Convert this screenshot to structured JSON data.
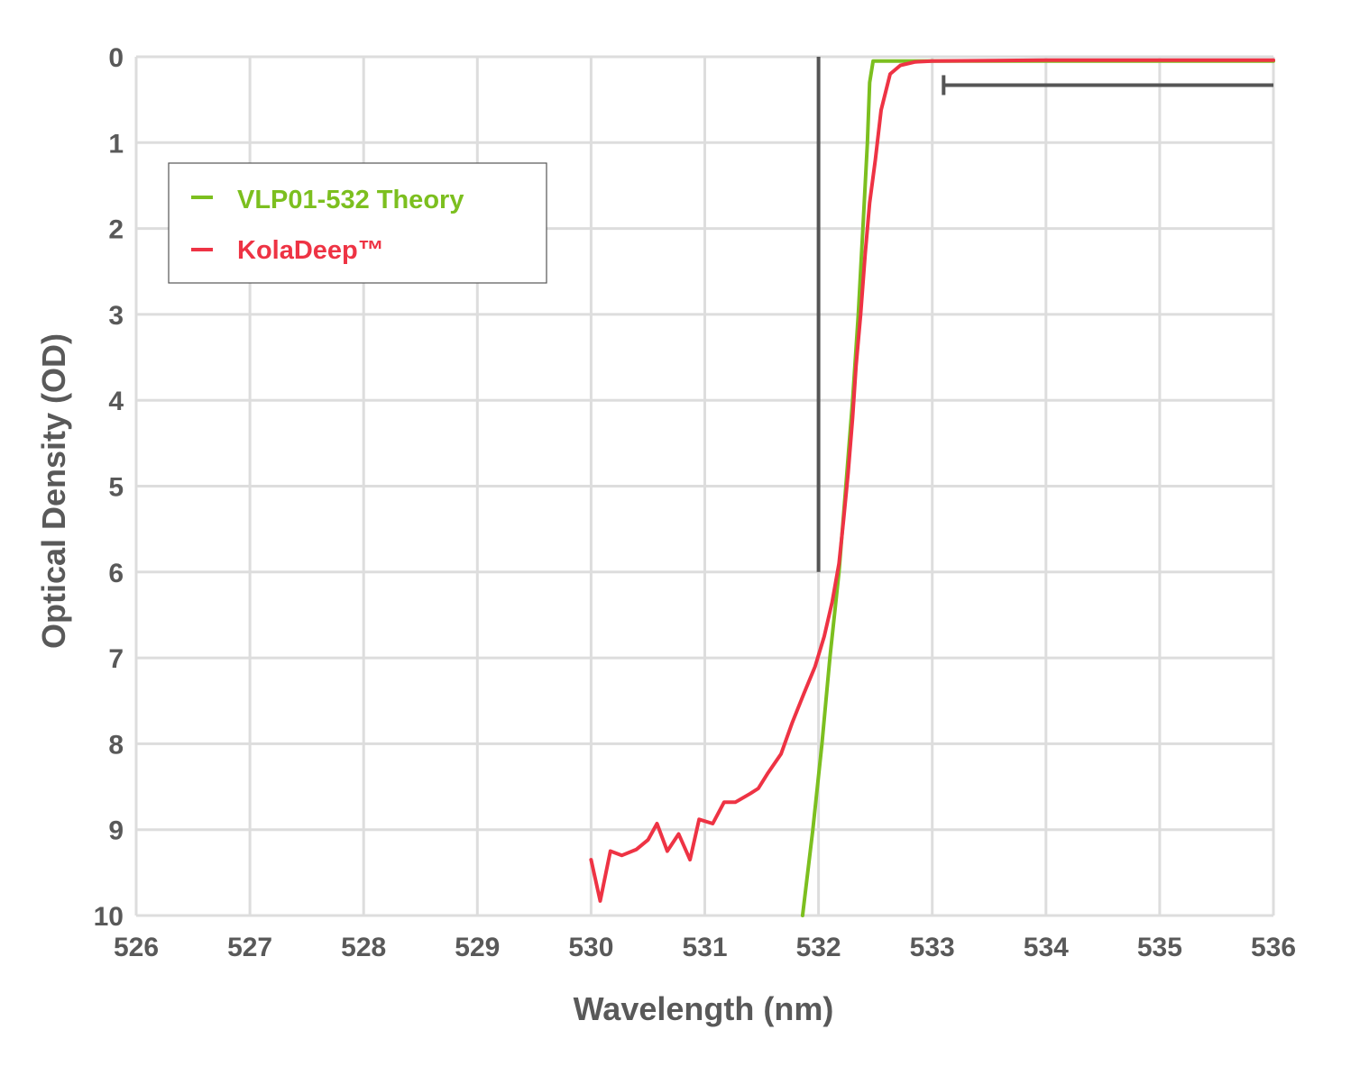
{
  "chart_data": {
    "type": "line",
    "title": "",
    "xlabel": "Wavelength (nm)",
    "ylabel": "Optical Density (OD)",
    "xlim": [
      526,
      536
    ],
    "ylim": [
      0,
      10
    ],
    "y_inverted": true,
    "grid": true,
    "legend_position": "top-left",
    "x_ticks": [
      "526",
      "527",
      "528",
      "529",
      "530",
      "531",
      "532",
      "533",
      "534",
      "535",
      "536"
    ],
    "y_ticks": [
      "0",
      "1",
      "2",
      "3",
      "4",
      "5",
      "6",
      "7",
      "8",
      "9",
      "10"
    ],
    "series": [
      {
        "name": "VLP01-532 Theory",
        "color": "#7cbf1f",
        "points": [
          [
            531.86,
            10.0
          ],
          [
            531.95,
            9.0
          ],
          [
            532.03,
            8.0
          ],
          [
            532.1,
            7.0
          ],
          [
            532.18,
            6.0
          ],
          [
            532.24,
            5.0
          ],
          [
            532.3,
            4.0
          ],
          [
            532.35,
            3.0
          ],
          [
            532.39,
            2.0
          ],
          [
            532.43,
            1.0
          ],
          [
            532.45,
            0.3
          ],
          [
            532.48,
            0.05
          ],
          [
            536.0,
            0.05
          ]
        ]
      },
      {
        "name": "KolaDeep™",
        "color": "#ee3344",
        "points": [
          [
            530.0,
            9.35
          ],
          [
            530.08,
            9.83
          ],
          [
            530.17,
            9.25
          ],
          [
            530.27,
            9.3
          ],
          [
            530.4,
            9.23
          ],
          [
            530.5,
            9.12
          ],
          [
            530.58,
            8.93
          ],
          [
            530.67,
            9.25
          ],
          [
            530.77,
            9.05
          ],
          [
            530.87,
            9.35
          ],
          [
            530.95,
            8.88
          ],
          [
            531.07,
            8.93
          ],
          [
            531.17,
            8.68
          ],
          [
            531.27,
            8.68
          ],
          [
            531.4,
            8.58
          ],
          [
            531.47,
            8.52
          ],
          [
            531.55,
            8.35
          ],
          [
            531.67,
            8.12
          ],
          [
            531.77,
            7.75
          ],
          [
            531.87,
            7.42
          ],
          [
            531.97,
            7.1
          ],
          [
            532.05,
            6.75
          ],
          [
            532.12,
            6.35
          ],
          [
            532.18,
            5.9
          ],
          [
            532.22,
            5.4
          ],
          [
            532.26,
            4.85
          ],
          [
            532.3,
            4.2
          ],
          [
            532.33,
            3.6
          ],
          [
            532.37,
            3.0
          ],
          [
            532.41,
            2.3
          ],
          [
            532.45,
            1.7
          ],
          [
            532.5,
            1.2
          ],
          [
            532.55,
            0.62
          ],
          [
            532.63,
            0.2
          ],
          [
            532.72,
            0.1
          ],
          [
            532.85,
            0.06
          ],
          [
            533.0,
            0.05
          ],
          [
            534.0,
            0.04
          ],
          [
            536.0,
            0.04
          ]
        ]
      }
    ],
    "annotations": [
      {
        "type": "vertical-line",
        "x": 532.0,
        "y_from": 0,
        "y_to": 6.0,
        "color": "#555555"
      },
      {
        "type": "horizontal-bar",
        "y": 0.33,
        "x_from": 533.1,
        "x_to": 536.0,
        "color": "#555555"
      }
    ]
  }
}
